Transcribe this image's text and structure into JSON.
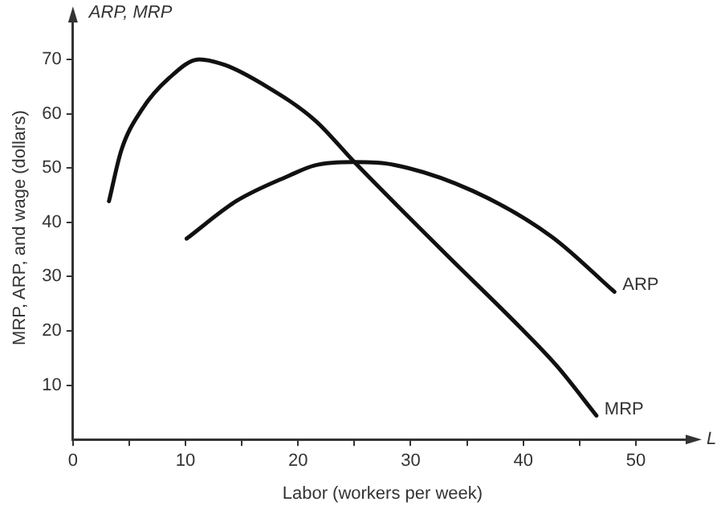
{
  "chart_data": {
    "type": "line",
    "xlabel": "Labor (workers per week)",
    "ylabel": "MRP, ARP, and wage (dollars)",
    "annotations": [
      "ARP, MRP",
      "L"
    ],
    "xlim": [
      0,
      55
    ],
    "ylim": [
      0,
      78
    ],
    "xticks": [
      0,
      {
        "value": 5,
        "label": null
      },
      10,
      {
        "value": 15,
        "label": null
      },
      20,
      {
        "value": 25,
        "label": null
      },
      30,
      {
        "value": 35,
        "label": null
      },
      40,
      {
        "value": 45,
        "label": null
      },
      50
    ],
    "yticks": [
      10,
      20,
      30,
      40,
      50,
      60,
      70
    ],
    "legend": false,
    "line_style": "solid",
    "series": [
      {
        "name": "MRP",
        "color": "#111111",
        "x": [
          3.2,
          4.3,
          6.1,
          8.5,
          11.2,
          13.5,
          16.9,
          21.5,
          25,
          32.9,
          39.7,
          43,
          46.5
        ],
        "values": [
          43.9,
          53.3,
          60.7,
          66.5,
          70,
          69,
          65.4,
          58.8,
          51.1,
          34.6,
          20.7,
          13.5,
          4.4
        ]
      },
      {
        "name": "ARP",
        "color": "#111111",
        "x": [
          10.1,
          14.5,
          19.2,
          21.5,
          25,
          28.5,
          35.5,
          42.5,
          48.1
        ],
        "values": [
          37,
          43.9,
          48.6,
          50.5,
          51.1,
          50.6,
          45.8,
          37.4,
          27.2
        ]
      }
    ]
  }
}
